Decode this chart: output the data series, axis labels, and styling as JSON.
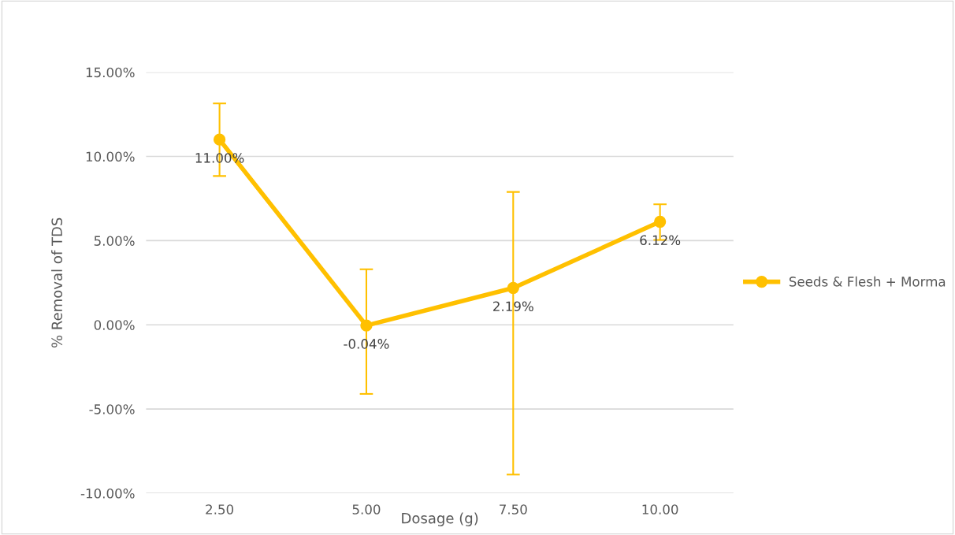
{
  "chart_data": {
    "type": "line",
    "xlabel": "Dosage (g)",
    "ylabel": "% Removal of TDS",
    "categories": [
      "2.50",
      "5.00",
      "7.50",
      "10.00"
    ],
    "series": [
      {
        "name": "Seeds & Flesh + Morma",
        "color": "#ffc000",
        "values": [
          11.0,
          -0.04,
          2.19,
          6.12
        ],
        "errors": [
          [
            8.84,
            13.15
          ],
          [
            -4.1,
            3.3
          ],
          [
            -8.89,
            7.89
          ],
          [
            5.04,
            7.16
          ]
        ],
        "value_labels": [
          "11.00%",
          "-0.04%",
          "2.19%",
          "6.12%"
        ]
      }
    ],
    "ylim": [
      -10,
      15
    ],
    "yticks": [
      {
        "value": -10,
        "label": "-10.00%"
      },
      {
        "value": -5,
        "label": "-5.00%"
      },
      {
        "value": 0,
        "label": "0.00%"
      },
      {
        "value": 5,
        "label": "5.00%"
      },
      {
        "value": 10,
        "label": "10.00%"
      },
      {
        "value": 15,
        "label": "15.00%"
      }
    ],
    "grid": "y",
    "legend": "right",
    "marker": "circle",
    "line_style": "solid"
  }
}
